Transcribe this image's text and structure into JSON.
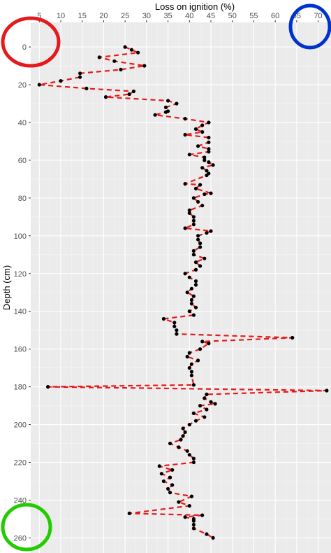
{
  "chart_data": {
    "type": "scatter",
    "xlabel": "Loss on ignition (%)",
    "ylabel": "Depth (cm)",
    "x_axis_position": "top",
    "y_axis_reversed": true,
    "xlim": [
      3,
      73
    ],
    "ylim": [
      -13,
      268
    ],
    "x_ticks": [
      5,
      10,
      15,
      20,
      25,
      30,
      35,
      40,
      45,
      50,
      55,
      60,
      65,
      70
    ],
    "y_ticks": [
      0,
      20,
      40,
      60,
      80,
      100,
      120,
      140,
      160,
      180,
      200,
      220,
      240,
      260
    ],
    "grid": true,
    "panel_color": "#ebebeb",
    "point_color": "#000000",
    "line_color": "#e41a1c",
    "line_style": "dashed",
    "points": [
      {
        "x": 25,
        "y": 0
      },
      {
        "x": 26.5,
        "y": 1.5
      },
      {
        "x": 28,
        "y": 3
      },
      {
        "x": 19,
        "y": 5.5
      },
      {
        "x": 22.5,
        "y": 7.5
      },
      {
        "x": 29.5,
        "y": 10
      },
      {
        "x": 24,
        "y": 12
      },
      {
        "x": 14.5,
        "y": 14
      },
      {
        "x": 14.5,
        "y": 16
      },
      {
        "x": 10,
        "y": 18
      },
      {
        "x": 5,
        "y": 20
      },
      {
        "x": 16,
        "y": 22
      },
      {
        "x": 27,
        "y": 23.5
      },
      {
        "x": 26,
        "y": 25
      },
      {
        "x": 20.5,
        "y": 26.5
      },
      {
        "x": 35,
        "y": 28.5
      },
      {
        "x": 37,
        "y": 30
      },
      {
        "x": 34.5,
        "y": 32
      },
      {
        "x": 35,
        "y": 34
      },
      {
        "x": 34.5,
        "y": 34.5
      },
      {
        "x": 32,
        "y": 36
      },
      {
        "x": 39,
        "y": 38
      },
      {
        "x": 44.5,
        "y": 40
      },
      {
        "x": 43,
        "y": 41.5
      },
      {
        "x": 41.5,
        "y": 43.5
      },
      {
        "x": 43,
        "y": 45
      },
      {
        "x": 39,
        "y": 46.5
      },
      {
        "x": 44.5,
        "y": 48
      },
      {
        "x": 44.5,
        "y": 50.5
      },
      {
        "x": 42,
        "y": 52.5
      },
      {
        "x": 44.5,
        "y": 54
      },
      {
        "x": 44.5,
        "y": 55.5
      },
      {
        "x": 40,
        "y": 57
      },
      {
        "x": 43.5,
        "y": 58.5
      },
      {
        "x": 43.5,
        "y": 60
      },
      {
        "x": 44.5,
        "y": 61
      },
      {
        "x": 45.5,
        "y": 62.5
      },
      {
        "x": 43,
        "y": 64
      },
      {
        "x": 44,
        "y": 65.5
      },
      {
        "x": 44.5,
        "y": 67
      },
      {
        "x": 44,
        "y": 68
      },
      {
        "x": 39,
        "y": 72.5
      },
      {
        "x": 42.5,
        "y": 73
      },
      {
        "x": 41.5,
        "y": 75
      },
      {
        "x": 45,
        "y": 77.5
      },
      {
        "x": 43.5,
        "y": 78
      },
      {
        "x": 41,
        "y": 80
      },
      {
        "x": 42,
        "y": 82
      },
      {
        "x": 43,
        "y": 84
      },
      {
        "x": 40,
        "y": 86.5
      },
      {
        "x": 40,
        "y": 88
      },
      {
        "x": 41,
        "y": 90
      },
      {
        "x": 41,
        "y": 92
      },
      {
        "x": 41,
        "y": 94
      },
      {
        "x": 39,
        "y": 96
      },
      {
        "x": 45,
        "y": 97.5
      },
      {
        "x": 44,
        "y": 98.5
      },
      {
        "x": 42,
        "y": 100
      },
      {
        "x": 42,
        "y": 102
      },
      {
        "x": 42.5,
        "y": 104
      },
      {
        "x": 42.5,
        "y": 106
      },
      {
        "x": 41,
        "y": 108
      },
      {
        "x": 41,
        "y": 110
      },
      {
        "x": 43.5,
        "y": 112
      },
      {
        "x": 41.5,
        "y": 114
      },
      {
        "x": 42.5,
        "y": 116
      },
      {
        "x": 41.5,
        "y": 118
      },
      {
        "x": 39,
        "y": 120
      },
      {
        "x": 40,
        "y": 122
      },
      {
        "x": 41.5,
        "y": 124
      },
      {
        "x": 41.5,
        "y": 126
      },
      {
        "x": 40.5,
        "y": 128
      },
      {
        "x": 39.5,
        "y": 130
      },
      {
        "x": 41,
        "y": 132
      },
      {
        "x": 40.5,
        "y": 134
      },
      {
        "x": 40.5,
        "y": 136
      },
      {
        "x": 41.5,
        "y": 138
      },
      {
        "x": 40,
        "y": 140
      },
      {
        "x": 41,
        "y": 142
      },
      {
        "x": 34,
        "y": 144
      },
      {
        "x": 36.5,
        "y": 146
      },
      {
        "x": 36.5,
        "y": 148
      },
      {
        "x": 37,
        "y": 150
      },
      {
        "x": 37,
        "y": 152
      },
      {
        "x": 64,
        "y": 154
      },
      {
        "x": 43,
        "y": 156
      },
      {
        "x": 44.5,
        "y": 157
      },
      {
        "x": 42.5,
        "y": 160
      },
      {
        "x": 40,
        "y": 162
      },
      {
        "x": 39.5,
        "y": 164
      },
      {
        "x": 42,
        "y": 166
      },
      {
        "x": 40.5,
        "y": 168
      },
      {
        "x": 40,
        "y": 170
      },
      {
        "x": 40.5,
        "y": 172
      },
      {
        "x": 40.5,
        "y": 174
      },
      {
        "x": 41,
        "y": 179
      },
      {
        "x": 7,
        "y": 180
      },
      {
        "x": 72,
        "y": 182
      },
      {
        "x": 44,
        "y": 184
      },
      {
        "x": 43.5,
        "y": 186
      },
      {
        "x": 45,
        "y": 188
      },
      {
        "x": 46,
        "y": 189
      },
      {
        "x": 42.5,
        "y": 190
      },
      {
        "x": 44,
        "y": 192
      },
      {
        "x": 41,
        "y": 194
      },
      {
        "x": 43.5,
        "y": 196
      },
      {
        "x": 41.5,
        "y": 198
      },
      {
        "x": 40,
        "y": 200
      },
      {
        "x": 38.5,
        "y": 202
      },
      {
        "x": 39,
        "y": 204
      },
      {
        "x": 38.5,
        "y": 206
      },
      {
        "x": 38,
        "y": 208
      },
      {
        "x": 35.5,
        "y": 210
      },
      {
        "x": 37.5,
        "y": 212
      },
      {
        "x": 39.5,
        "y": 214
      },
      {
        "x": 40,
        "y": 216
      },
      {
        "x": 41,
        "y": 218
      },
      {
        "x": 41,
        "y": 220
      },
      {
        "x": 33,
        "y": 222
      },
      {
        "x": 36,
        "y": 224
      },
      {
        "x": 33.5,
        "y": 226
      },
      {
        "x": 35.5,
        "y": 228
      },
      {
        "x": 34,
        "y": 230
      },
      {
        "x": 36,
        "y": 232
      },
      {
        "x": 35,
        "y": 234
      },
      {
        "x": 35.5,
        "y": 236
      },
      {
        "x": 40.5,
        "y": 238
      },
      {
        "x": 37.5,
        "y": 241
      },
      {
        "x": 40,
        "y": 243
      },
      {
        "x": 26,
        "y": 247
      },
      {
        "x": 43,
        "y": 248
      },
      {
        "x": 39,
        "y": 249
      },
      {
        "x": 41,
        "y": 250
      },
      {
        "x": 41,
        "y": 251
      },
      {
        "x": 41,
        "y": 253
      },
      {
        "x": 41,
        "y": 255
      },
      {
        "x": 44,
        "y": 258
      },
      {
        "x": 45.5,
        "y": 260
      }
    ]
  },
  "annotations": [
    {
      "shape": "circle",
      "color": "#e41a1c",
      "position": "top-left"
    },
    {
      "shape": "circle",
      "color": "#0033cc",
      "position": "top-right"
    },
    {
      "shape": "circle",
      "color": "#22cc00",
      "position": "bottom-left"
    }
  ]
}
